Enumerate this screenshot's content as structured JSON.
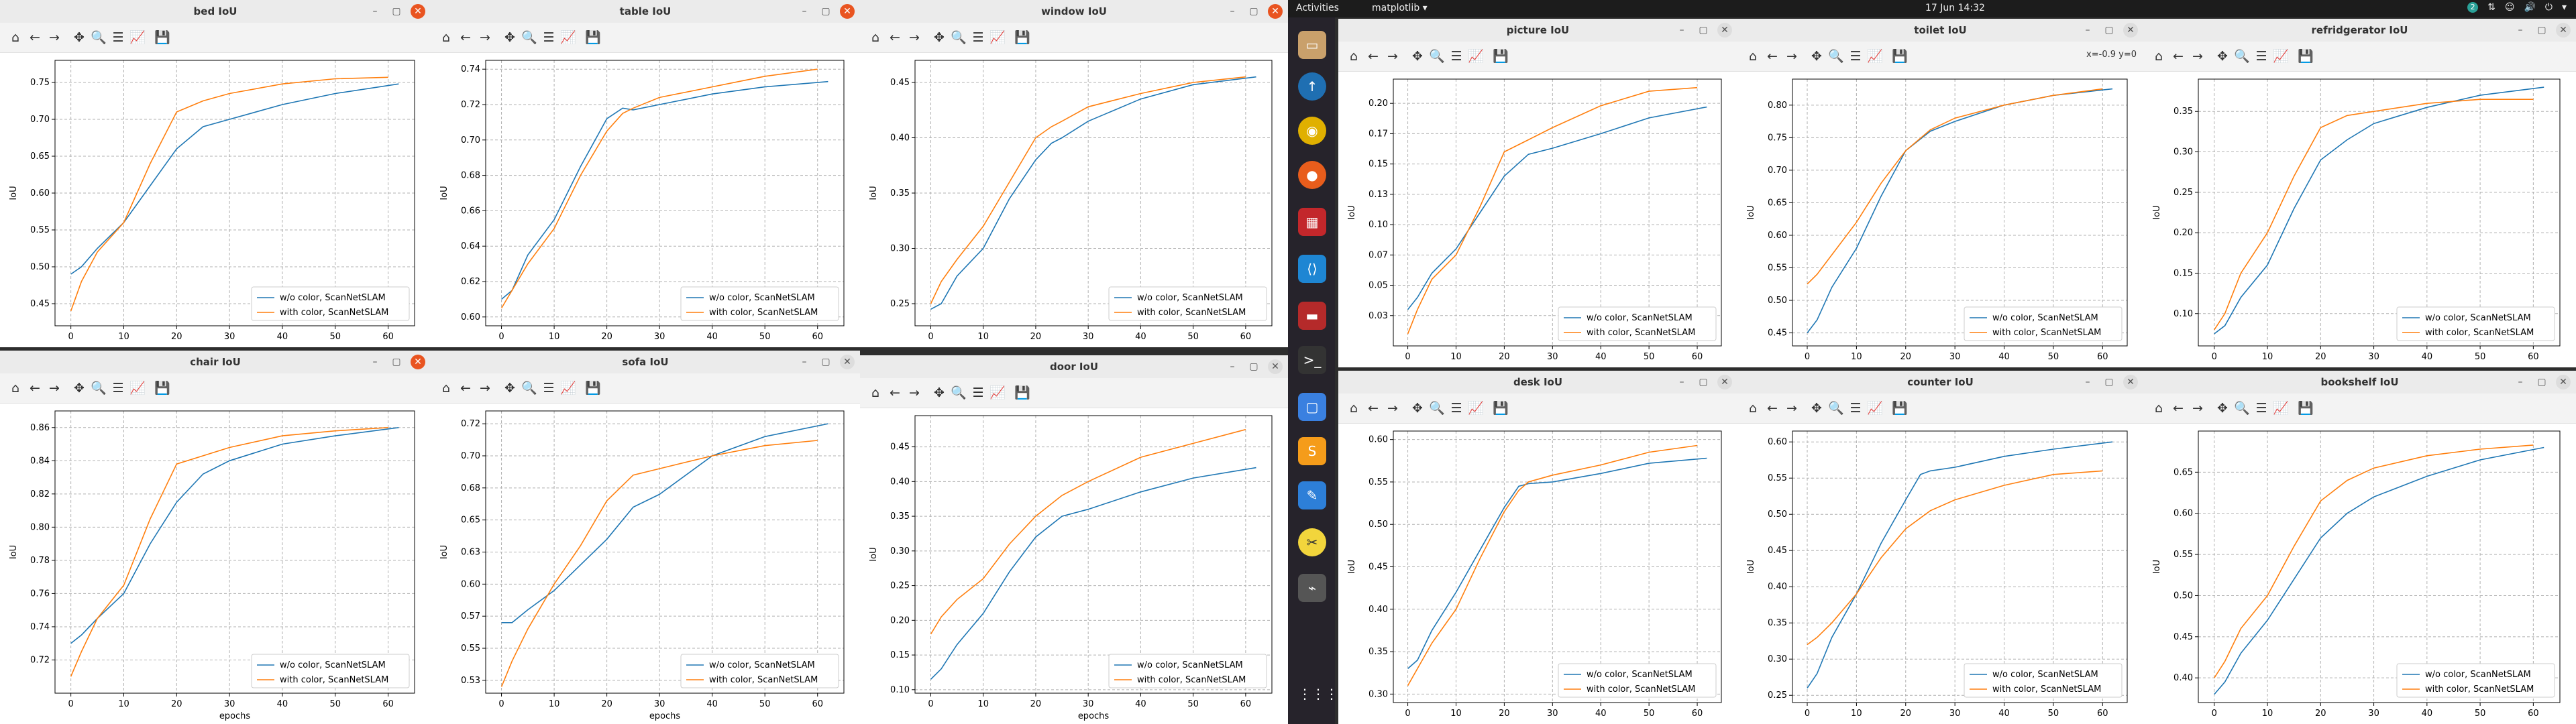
{
  "topbar": {
    "activities": "Activities",
    "app_name": "matplotlib ▾",
    "clock": "17 Jun 14:32",
    "badge": "2"
  },
  "dock_icons": [
    "files-icon",
    "transfer-icon",
    "chrome-icon",
    "firefox-icon",
    "meld-icon",
    "vscode-icon",
    "terminal-icon",
    "terminal2-icon",
    "screenshot-icon",
    "sublime-icon",
    "text-editor-icon",
    "tools-icon",
    "usb-icon",
    "apps-grid-icon"
  ],
  "colors": {
    "series1": "#1f77b4",
    "series2": "#ff7f0e"
  },
  "legend": [
    "w/o color, ScanNetSLAM",
    "with color, ScanNetSLAM"
  ],
  "axis": {
    "xlabel": "epochs",
    "ylabel": "IoU"
  },
  "windows": [
    {
      "title": "bed IoU",
      "coord": ""
    },
    {
      "title": "table IoU",
      "coord": ""
    },
    {
      "title": "window IoU",
      "coord": ""
    },
    {
      "title": "chair IoU",
      "coord": ""
    },
    {
      "title": "sofa IoU",
      "coord": ""
    },
    {
      "title": "door IoU",
      "coord": ""
    },
    {
      "title": "picture IoU",
      "coord": ""
    },
    {
      "title": "toilet IoU",
      "coord": "x=-0.9 y=0"
    },
    {
      "title": "refridgerator IoU",
      "coord": ""
    },
    {
      "title": "desk IoU",
      "coord": ""
    },
    {
      "title": "counter IoU",
      "coord": ""
    },
    {
      "title": "bookshelf IoU",
      "coord": ""
    }
  ],
  "chart_data": [
    {
      "type": "line",
      "title": "bed IoU",
      "xlim": [
        -3,
        65
      ],
      "ylim": [
        0.42,
        0.78
      ],
      "xticks": [
        0,
        10,
        20,
        30,
        40,
        50,
        60
      ],
      "yticks": [
        0.45,
        0.5,
        0.55,
        0.6,
        0.65,
        0.7,
        0.75
      ],
      "xlabel": "",
      "ylabel": "IoU",
      "series": [
        {
          "name": "w/o color, ScanNetSLAM",
          "x": [
            0,
            2,
            5,
            10,
            15,
            20,
            25,
            30,
            40,
            50,
            62
          ],
          "y": [
            0.49,
            0.5,
            0.525,
            0.56,
            0.61,
            0.66,
            0.69,
            0.7,
            0.72,
            0.735,
            0.748
          ]
        },
        {
          "name": "with color, ScanNetSLAM",
          "x": [
            0,
            2,
            5,
            10,
            15,
            20,
            25,
            30,
            40,
            50,
            60
          ],
          "y": [
            0.44,
            0.48,
            0.52,
            0.56,
            0.64,
            0.71,
            0.725,
            0.735,
            0.748,
            0.755,
            0.757
          ]
        }
      ]
    },
    {
      "type": "line",
      "title": "table IoU",
      "xlim": [
        -3,
        65
      ],
      "ylim": [
        0.595,
        0.745
      ],
      "xticks": [
        0,
        10,
        20,
        30,
        40,
        50,
        60
      ],
      "yticks": [
        0.6,
        0.62,
        0.64,
        0.66,
        0.68,
        0.7,
        0.72,
        0.74
      ],
      "xlabel": "",
      "ylabel": "IoU",
      "series": [
        {
          "name": "w/o color, ScanNetSLAM",
          "x": [
            0,
            2,
            5,
            10,
            15,
            20,
            23,
            25,
            30,
            40,
            50,
            62
          ],
          "y": [
            0.61,
            0.615,
            0.635,
            0.655,
            0.685,
            0.712,
            0.718,
            0.717,
            0.72,
            0.726,
            0.73,
            0.733
          ]
        },
        {
          "name": "with color, ScanNetSLAM",
          "x": [
            0,
            2,
            5,
            10,
            15,
            20,
            23,
            25,
            30,
            40,
            50,
            60
          ],
          "y": [
            0.605,
            0.615,
            0.63,
            0.65,
            0.68,
            0.705,
            0.715,
            0.718,
            0.724,
            0.73,
            0.736,
            0.74
          ]
        }
      ]
    },
    {
      "type": "line",
      "title": "window IoU",
      "xlim": [
        -3,
        65
      ],
      "ylim": [
        0.23,
        0.47
      ],
      "xticks": [
        0,
        10,
        20,
        30,
        40,
        50,
        60
      ],
      "yticks": [
        0.25,
        0.3,
        0.35,
        0.4,
        0.45
      ],
      "xlabel": "",
      "ylabel": "IoU",
      "series": [
        {
          "name": "w/o color, ScanNetSLAM",
          "x": [
            0,
            2,
            5,
            10,
            15,
            20,
            23,
            25,
            30,
            40,
            50,
            62
          ],
          "y": [
            0.245,
            0.25,
            0.275,
            0.3,
            0.345,
            0.38,
            0.395,
            0.4,
            0.415,
            0.435,
            0.448,
            0.455
          ]
        },
        {
          "name": "with color, ScanNetSLAM",
          "x": [
            0,
            2,
            5,
            10,
            15,
            20,
            23,
            25,
            30,
            40,
            50,
            60
          ],
          "y": [
            0.25,
            0.27,
            0.29,
            0.32,
            0.36,
            0.4,
            0.41,
            0.415,
            0.428,
            0.44,
            0.45,
            0.455
          ]
        }
      ]
    },
    {
      "type": "line",
      "title": "chair IoU",
      "xlim": [
        -3,
        65
      ],
      "ylim": [
        0.7,
        0.87
      ],
      "xticks": [
        0,
        10,
        20,
        30,
        40,
        50,
        60
      ],
      "yticks": [
        0.72,
        0.74,
        0.76,
        0.78,
        0.8,
        0.82,
        0.84,
        0.86
      ],
      "xlabel": "epochs",
      "ylabel": "IoU",
      "series": [
        {
          "name": "w/o color, ScanNetSLAM",
          "x": [
            0,
            2,
            5,
            10,
            15,
            20,
            25,
            30,
            40,
            50,
            62
          ],
          "y": [
            0.73,
            0.735,
            0.745,
            0.76,
            0.79,
            0.815,
            0.832,
            0.84,
            0.85,
            0.855,
            0.86
          ]
        },
        {
          "name": "with color, ScanNetSLAM",
          "x": [
            0,
            2,
            5,
            10,
            15,
            20,
            25,
            30,
            40,
            50,
            60
          ],
          "y": [
            0.71,
            0.725,
            0.745,
            0.765,
            0.805,
            0.838,
            0.843,
            0.848,
            0.855,
            0.858,
            0.86
          ]
        }
      ]
    },
    {
      "type": "line",
      "title": "sofa IoU",
      "xlim": [
        -3,
        65
      ],
      "ylim": [
        0.515,
        0.735
      ],
      "xticks": [
        0,
        10,
        20,
        30,
        40,
        50,
        60
      ],
      "yticks": [
        0.525,
        0.55,
        0.575,
        0.6,
        0.625,
        0.65,
        0.675,
        0.7,
        0.725
      ],
      "xlabel": "epochs",
      "ylabel": "IoU",
      "series": [
        {
          "name": "w/o color, ScanNetSLAM",
          "x": [
            0,
            2,
            5,
            10,
            15,
            20,
            25,
            30,
            40,
            50,
            62
          ],
          "y": [
            0.57,
            0.57,
            0.58,
            0.595,
            0.615,
            0.635,
            0.66,
            0.67,
            0.7,
            0.715,
            0.725
          ]
        },
        {
          "name": "with color, ScanNetSLAM",
          "x": [
            0,
            2,
            5,
            10,
            15,
            20,
            25,
            30,
            40,
            50,
            60
          ],
          "y": [
            0.52,
            0.54,
            0.565,
            0.6,
            0.63,
            0.665,
            0.685,
            0.69,
            0.7,
            0.708,
            0.712
          ]
        }
      ]
    },
    {
      "type": "line",
      "title": "door IoU",
      "xlim": [
        -3,
        65
      ],
      "ylim": [
        0.095,
        0.495
      ],
      "xticks": [
        0,
        10,
        20,
        30,
        40,
        50,
        60
      ],
      "yticks": [
        0.1,
        0.15,
        0.2,
        0.25,
        0.3,
        0.35,
        0.4,
        0.45
      ],
      "xlabel": "epochs",
      "ylabel": "IoU",
      "series": [
        {
          "name": "w/o color, ScanNetSLAM",
          "x": [
            0,
            2,
            5,
            10,
            15,
            20,
            25,
            30,
            40,
            50,
            62
          ],
          "y": [
            0.115,
            0.13,
            0.165,
            0.21,
            0.27,
            0.32,
            0.35,
            0.36,
            0.385,
            0.405,
            0.42
          ]
        },
        {
          "name": "with color, ScanNetSLAM",
          "x": [
            0,
            2,
            5,
            10,
            15,
            20,
            25,
            30,
            40,
            50,
            60
          ],
          "y": [
            0.18,
            0.205,
            0.23,
            0.26,
            0.31,
            0.35,
            0.38,
            0.4,
            0.435,
            0.455,
            0.475
          ]
        }
      ]
    },
    {
      "type": "line",
      "title": "picture IoU",
      "xlim": [
        -3,
        65
      ],
      "ylim": [
        0.0,
        0.22
      ],
      "xticks": [
        0,
        10,
        20,
        30,
        40,
        50,
        60
      ],
      "yticks": [
        0.025,
        0.05,
        0.075,
        0.1,
        0.125,
        0.15,
        0.175,
        0.2
      ],
      "xlabel": "",
      "ylabel": "IoU",
      "series": [
        {
          "name": "w/o color, ScanNetSLAM",
          "x": [
            0,
            2,
            5,
            10,
            15,
            20,
            25,
            30,
            40,
            50,
            62
          ],
          "y": [
            0.03,
            0.04,
            0.06,
            0.08,
            0.11,
            0.14,
            0.158,
            0.163,
            0.175,
            0.188,
            0.197
          ]
        },
        {
          "name": "with color, ScanNetSLAM",
          "x": [
            0,
            2,
            5,
            10,
            15,
            20,
            25,
            30,
            40,
            50,
            60
          ],
          "y": [
            0.01,
            0.03,
            0.055,
            0.075,
            0.115,
            0.16,
            0.17,
            0.18,
            0.198,
            0.21,
            0.213
          ]
        }
      ]
    },
    {
      "type": "line",
      "title": "toilet IoU",
      "xlim": [
        -3,
        65
      ],
      "ylim": [
        0.43,
        0.84
      ],
      "xticks": [
        0,
        10,
        20,
        30,
        40,
        50,
        60
      ],
      "yticks": [
        0.45,
        0.5,
        0.55,
        0.6,
        0.65,
        0.7,
        0.75,
        0.8
      ],
      "xlabel": "",
      "ylabel": "IoU",
      "series": [
        {
          "name": "w/o color, ScanNetSLAM",
          "x": [
            0,
            2,
            5,
            10,
            15,
            20,
            25,
            30,
            40,
            50,
            62
          ],
          "y": [
            0.45,
            0.47,
            0.52,
            0.58,
            0.66,
            0.73,
            0.76,
            0.775,
            0.8,
            0.815,
            0.825
          ]
        },
        {
          "name": "with color, ScanNetSLAM",
          "x": [
            0,
            2,
            5,
            10,
            15,
            20,
            25,
            30,
            40,
            50,
            60
          ],
          "y": [
            0.525,
            0.54,
            0.57,
            0.62,
            0.68,
            0.73,
            0.762,
            0.78,
            0.8,
            0.815,
            0.825
          ]
        }
      ]
    },
    {
      "type": "line",
      "title": "refridgerator IoU",
      "xlim": [
        -3,
        65
      ],
      "ylim": [
        0.06,
        0.39
      ],
      "xticks": [
        0,
        10,
        20,
        30,
        40,
        50,
        60
      ],
      "yticks": [
        0.1,
        0.15,
        0.2,
        0.25,
        0.3,
        0.35
      ],
      "xlabel": "",
      "ylabel": "IoU",
      "series": [
        {
          "name": "w/o color, ScanNetSLAM",
          "x": [
            0,
            2,
            5,
            10,
            15,
            20,
            25,
            30,
            40,
            50,
            62
          ],
          "y": [
            0.075,
            0.085,
            0.12,
            0.16,
            0.23,
            0.29,
            0.315,
            0.335,
            0.355,
            0.37,
            0.38
          ]
        },
        {
          "name": "with color, ScanNetSLAM",
          "x": [
            0,
            2,
            5,
            10,
            15,
            20,
            25,
            30,
            40,
            50,
            60
          ],
          "y": [
            0.08,
            0.1,
            0.15,
            0.2,
            0.27,
            0.33,
            0.345,
            0.35,
            0.36,
            0.365,
            0.365
          ]
        }
      ]
    },
    {
      "type": "line",
      "title": "desk IoU",
      "xlim": [
        -3,
        65
      ],
      "ylim": [
        0.29,
        0.61
      ],
      "xticks": [
        0,
        10,
        20,
        30,
        40,
        50,
        60
      ],
      "yticks": [
        0.3,
        0.35,
        0.4,
        0.45,
        0.5,
        0.55,
        0.6
      ],
      "xlabel": "",
      "ylabel": "IoU",
      "series": [
        {
          "name": "w/o color, ScanNetSLAM",
          "x": [
            0,
            2,
            5,
            10,
            15,
            20,
            23,
            25,
            30,
            40,
            50,
            62
          ],
          "y": [
            0.33,
            0.34,
            0.375,
            0.42,
            0.47,
            0.52,
            0.545,
            0.548,
            0.55,
            0.56,
            0.572,
            0.578
          ]
        },
        {
          "name": "with color, ScanNetSLAM",
          "x": [
            0,
            2,
            5,
            10,
            15,
            20,
            23,
            25,
            30,
            40,
            50,
            60
          ],
          "y": [
            0.31,
            0.33,
            0.36,
            0.4,
            0.46,
            0.515,
            0.54,
            0.55,
            0.558,
            0.57,
            0.585,
            0.593
          ]
        }
      ]
    },
    {
      "type": "line",
      "title": "counter IoU",
      "xlim": [
        -3,
        65
      ],
      "ylim": [
        0.24,
        0.615
      ],
      "xticks": [
        0,
        10,
        20,
        30,
        40,
        50,
        60
      ],
      "yticks": [
        0.25,
        0.3,
        0.35,
        0.4,
        0.45,
        0.5,
        0.55,
        0.6
      ],
      "xlabel": "",
      "ylabel": "IoU",
      "series": [
        {
          "name": "w/o color, ScanNetSLAM",
          "x": [
            0,
            2,
            5,
            10,
            15,
            20,
            23,
            25,
            30,
            40,
            50,
            62
          ],
          "y": [
            0.26,
            0.28,
            0.33,
            0.39,
            0.46,
            0.52,
            0.555,
            0.56,
            0.565,
            0.58,
            0.59,
            0.6
          ]
        },
        {
          "name": "with color, ScanNetSLAM",
          "x": [
            0,
            2,
            5,
            10,
            15,
            20,
            25,
            30,
            40,
            50,
            60
          ],
          "y": [
            0.32,
            0.33,
            0.35,
            0.39,
            0.44,
            0.48,
            0.505,
            0.52,
            0.54,
            0.555,
            0.56
          ]
        }
      ]
    },
    {
      "type": "line",
      "title": "bookshelf IoU",
      "xlim": [
        -3,
        65
      ],
      "ylim": [
        0.37,
        0.7
      ],
      "xticks": [
        0,
        10,
        20,
        30,
        40,
        50,
        60
      ],
      "yticks": [
        0.4,
        0.45,
        0.5,
        0.55,
        0.6,
        0.65
      ],
      "xlabel": "",
      "ylabel": "IoU",
      "series": [
        {
          "name": "w/o color, ScanNetSLAM",
          "x": [
            0,
            2,
            5,
            10,
            15,
            20,
            25,
            30,
            40,
            50,
            62
          ],
          "y": [
            0.38,
            0.395,
            0.43,
            0.47,
            0.52,
            0.57,
            0.6,
            0.62,
            0.645,
            0.665,
            0.68
          ]
        },
        {
          "name": "with color, ScanNetSLAM",
          "x": [
            0,
            2,
            5,
            10,
            15,
            20,
            25,
            30,
            40,
            50,
            60
          ],
          "y": [
            0.4,
            0.42,
            0.46,
            0.5,
            0.56,
            0.615,
            0.64,
            0.655,
            0.67,
            0.678,
            0.683
          ]
        }
      ]
    }
  ]
}
